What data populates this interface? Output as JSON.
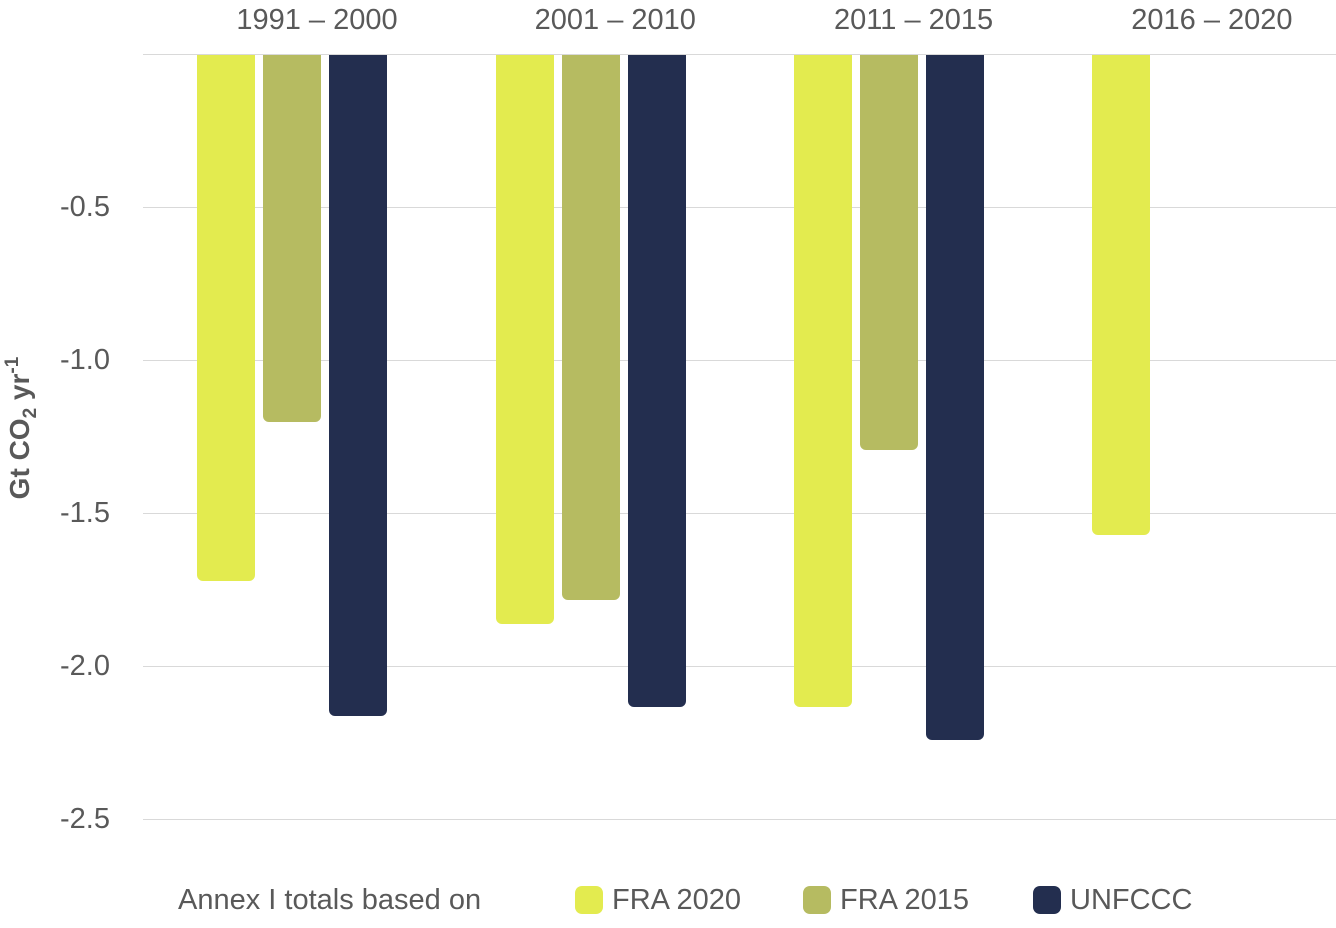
{
  "chart_data": {
    "type": "bar",
    "orientation": "vertical-negative",
    "title": "",
    "categories": [
      "1991 – 2000",
      "2001 – 2010",
      "2011 – 2015",
      "2016 – 2020"
    ],
    "series": [
      {
        "name": "FRA 2020",
        "color": "#e3eb4f",
        "values": [
          -1.72,
          -1.86,
          -2.13,
          -1.57
        ]
      },
      {
        "name": "FRA 2015",
        "color": "#b6bb61",
        "values": [
          -1.2,
          -1.78,
          -1.29,
          null
        ]
      },
      {
        "name": "UNFCCC",
        "color": "#232e4f",
        "values": [
          -2.16,
          -2.13,
          -2.24,
          null
        ]
      }
    ],
    "ylabel": "Gt CO2 yr-1",
    "ylabel_parts": {
      "pre": "Gt CO",
      "sub": "2",
      "mid": " yr",
      "sup": "-1"
    },
    "yticks": [
      "-0.5",
      "-1.0",
      "-1.5",
      "-2.0",
      "-2.5"
    ],
    "ylim": [
      0,
      -2.5
    ],
    "grid": true,
    "legend": {
      "position": "bottom",
      "prefix": "Annex I totals based on",
      "entries": [
        "FRA 2020",
        "FRA 2015",
        "UNFCCC"
      ]
    }
  },
  "colors": {
    "background": "#ffffff",
    "text": "#595959",
    "gridline": "#d9d9d9",
    "fra_2020": "#e3eb4f",
    "fra_2015": "#b6bb61",
    "unfccc": "#232e4f"
  }
}
